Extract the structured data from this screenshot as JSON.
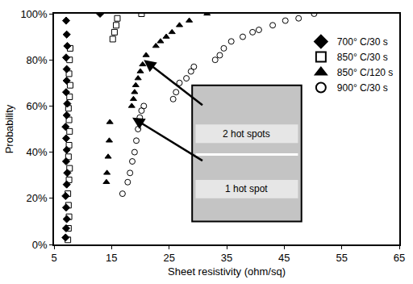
{
  "chart_data": {
    "type": "scatter",
    "x_label": "Sheet resistivity (ohm/sq)",
    "y_label": "Probability",
    "xlim": [
      5,
      65
    ],
    "xticks": [
      5,
      15,
      25,
      35,
      45,
      55,
      65
    ],
    "ylim": [
      0,
      100
    ],
    "yticks": [
      {
        "value": 0,
        "label": "0%"
      },
      {
        "value": 20,
        "label": "20%"
      },
      {
        "value": 40,
        "label": "40%"
      },
      {
        "value": 60,
        "label": "60%"
      },
      {
        "value": 80,
        "label": "80%"
      },
      {
        "value": 100,
        "label": "100%"
      }
    ],
    "grid": false,
    "legend": "top right",
    "annotations": [
      "2 hot spots",
      "1 hot spot"
    ],
    "series": [
      {
        "name": "700° C/30 s",
        "color": "#000000",
        "marker": "filled diamond",
        "x": [
          7.0,
          7.1,
          7.2,
          7.1,
          7.0,
          7.2,
          7.3,
          7.1,
          7.2,
          7.1,
          7.0,
          7.2,
          7.3,
          7.1,
          7.2,
          7.2,
          7.1,
          7.3,
          7.2,
          7.1,
          13.0
        ],
        "values": [
          3,
          7,
          11,
          16,
          21,
          26,
          31,
          36,
          41,
          46,
          51,
          56,
          61,
          66,
          71,
          76,
          81,
          86,
          91,
          97,
          100
        ]
      },
      {
        "name": "850° C/30 s",
        "color": "#000000",
        "marker": "open square",
        "x": [
          7.4,
          7.5,
          7.6,
          7.5,
          7.4,
          7.6,
          7.7,
          7.5,
          7.6,
          7.7,
          7.6,
          7.5,
          7.7,
          7.8,
          7.6,
          7.7,
          7.8,
          15.2,
          15.5,
          15.8,
          16.0,
          20.2
        ],
        "values": [
          2,
          7,
          12,
          17,
          22,
          28,
          33,
          38,
          43,
          49,
          54,
          59,
          64,
          69,
          74,
          80,
          85,
          89,
          92,
          95,
          98,
          100
        ]
      },
      {
        "name": "850° C/120 s",
        "color": "#000000",
        "marker": "filled triangle",
        "x": [
          14.1,
          14.2,
          14.4,
          14.6,
          14.7,
          18.5,
          18.8,
          19.0,
          19.2,
          19.6,
          20.0,
          20.4,
          21.0,
          22.7,
          23.5,
          24.5,
          25.5,
          26.8,
          28.5,
          31.6
        ],
        "values": [
          27,
          31,
          38,
          45,
          53,
          60,
          63,
          66,
          69,
          72,
          75,
          78,
          82,
          86,
          88,
          90,
          92,
          95,
          97,
          100
        ]
      },
      {
        "name": "900° C/30 s",
        "color": "#000000",
        "marker": "open circle",
        "x": [
          16.9,
          17.8,
          18.2,
          18.6,
          19.0,
          19.3,
          19.6,
          19.9,
          20.2,
          20.6,
          25.7,
          26.2,
          26.8,
          28.0,
          28.8,
          29.3,
          33.0,
          33.8,
          34.5,
          35.8,
          37.8,
          39.5,
          40.6,
          43.0,
          45.2,
          47.5,
          50.2
        ],
        "values": [
          22,
          27,
          31,
          36,
          40,
          45,
          50,
          55,
          58,
          60,
          63,
          66,
          70,
          72,
          75,
          77,
          80,
          82,
          85,
          88,
          90,
          92,
          93,
          95,
          97,
          98,
          100
        ]
      }
    ]
  }
}
